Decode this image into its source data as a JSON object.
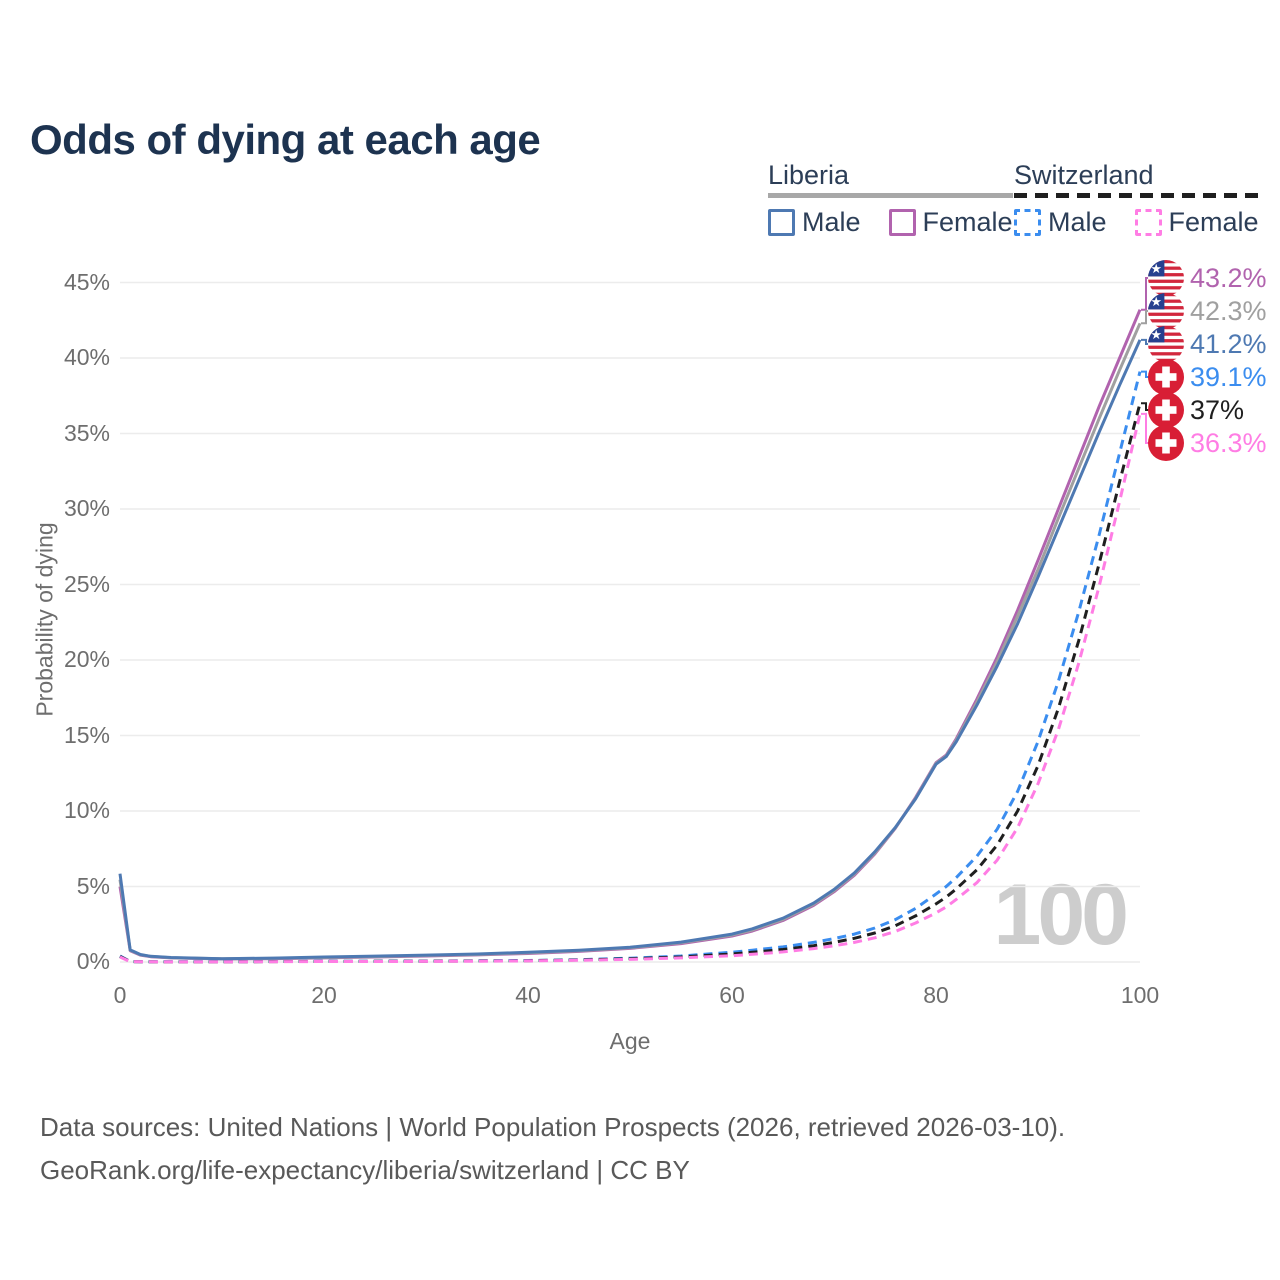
{
  "title": "Odds of dying at each age",
  "legend": {
    "groups": [
      {
        "name": "Liberia",
        "line_style": "solid",
        "underline_color": "#a8a8a8",
        "items": [
          {
            "label": "Male",
            "color": "#4e79b2"
          },
          {
            "label": "Female",
            "color": "#b163ae"
          }
        ]
      },
      {
        "name": "Switzerland",
        "line_style": "dashed",
        "underline_color": "#1f1f1f",
        "items": [
          {
            "label": "Male",
            "color": "#3b8def"
          },
          {
            "label": "Female",
            "color": "#ff7de4"
          }
        ]
      }
    ]
  },
  "chart_data": {
    "type": "line",
    "title": "Odds of dying at each age",
    "xlabel": "Age",
    "ylabel": "Probability of dying",
    "xlim": [
      0,
      100
    ],
    "ylim": [
      0,
      45
    ],
    "x_ticks": [
      "0",
      "20",
      "40",
      "60",
      "80",
      "100"
    ],
    "y_ticks": [
      "45%",
      "40%",
      "35%",
      "30%",
      "25%",
      "20%",
      "15%",
      "10%",
      "5%",
      "0%"
    ],
    "grid": "horizontal",
    "watermark": "100",
    "legend_position": "top-right",
    "ages": [
      0,
      1,
      2,
      3,
      5,
      10,
      15,
      20,
      25,
      30,
      35,
      40,
      45,
      50,
      55,
      60,
      62,
      65,
      68,
      70,
      72,
      74,
      76,
      78,
      80,
      81,
      82,
      84,
      86,
      88,
      90,
      92,
      94,
      96,
      98,
      100
    ],
    "series": [
      {
        "id": "liberia-female",
        "name": "Liberia Female",
        "country": "Liberia",
        "sex": "Female",
        "color": "#b163ae",
        "dashed": false,
        "end_label": "43.2%",
        "flag": "liberia",
        "values_pct": [
          5.0,
          0.75,
          0.46,
          0.35,
          0.27,
          0.2,
          0.22,
          0.27,
          0.33,
          0.4,
          0.47,
          0.56,
          0.7,
          0.9,
          1.22,
          1.72,
          2.05,
          2.75,
          3.75,
          4.65,
          5.75,
          7.15,
          8.85,
          10.9,
          13.2,
          13.7,
          14.8,
          17.4,
          20.2,
          23.3,
          26.6,
          30.0,
          33.4,
          36.8,
          40.0,
          43.2
        ]
      },
      {
        "id": "liberia-total",
        "name": "Liberia (both sexes)",
        "country": "Liberia",
        "sex": "Both",
        "color": "#a0a0a0",
        "dashed": false,
        "end_label": "42.3%",
        "flag": "liberia",
        "values_pct": [
          5.45,
          0.78,
          0.48,
          0.37,
          0.28,
          0.21,
          0.24,
          0.3,
          0.36,
          0.43,
          0.5,
          0.6,
          0.74,
          0.94,
          1.27,
          1.78,
          2.12,
          2.82,
          3.82,
          4.72,
          5.82,
          7.22,
          8.87,
          10.85,
          13.15,
          13.65,
          14.7,
          17.2,
          19.9,
          22.9,
          26.0,
          29.4,
          32.7,
          36.0,
          39.2,
          42.3
        ]
      },
      {
        "id": "liberia-male",
        "name": "Liberia Male",
        "country": "Liberia",
        "sex": "Male",
        "color": "#4e79b2",
        "dashed": false,
        "end_label": "41.2%",
        "flag": "liberia",
        "values_pct": [
          5.85,
          0.8,
          0.5,
          0.38,
          0.3,
          0.22,
          0.26,
          0.33,
          0.39,
          0.46,
          0.53,
          0.64,
          0.78,
          0.98,
          1.32,
          1.85,
          2.2,
          2.9,
          3.9,
          4.8,
          5.9,
          7.3,
          8.9,
          10.8,
          13.1,
          13.6,
          14.6,
          17.0,
          19.6,
          22.4,
          25.5,
          28.7,
          31.9,
          35.1,
          38.2,
          41.2
        ]
      },
      {
        "id": "switzerland-male",
        "name": "Switzerland Male",
        "country": "Switzerland",
        "sex": "Male",
        "color": "#3b8def",
        "dashed": true,
        "end_label": "39.1%",
        "flag": "switzerland",
        "values_pct": [
          0.4,
          0.03,
          0.02,
          0.015,
          0.01,
          0.01,
          0.03,
          0.05,
          0.055,
          0.06,
          0.08,
          0.1,
          0.15,
          0.25,
          0.4,
          0.65,
          0.78,
          1.0,
          1.3,
          1.55,
          1.85,
          2.25,
          2.8,
          3.55,
          4.5,
          5.0,
          5.6,
          7.0,
          8.8,
          11.3,
          14.6,
          18.6,
          23.2,
          28.3,
          33.7,
          39.1
        ]
      },
      {
        "id": "switzerland-total",
        "name": "Switzerland (both sexes)",
        "country": "Switzerland",
        "sex": "Both",
        "color": "#1f1f1f",
        "dashed": true,
        "end_label": "37%",
        "flag": "switzerland",
        "values_pct": [
          0.37,
          0.028,
          0.018,
          0.014,
          0.009,
          0.009,
          0.025,
          0.04,
          0.045,
          0.05,
          0.065,
          0.085,
          0.13,
          0.21,
          0.33,
          0.53,
          0.64,
          0.83,
          1.08,
          1.3,
          1.57,
          1.92,
          2.4,
          3.05,
          3.85,
          4.3,
          4.85,
          6.1,
          7.75,
          10.0,
          13.0,
          16.8,
          21.3,
          26.4,
          31.8,
          37.0
        ]
      },
      {
        "id": "switzerland-female",
        "name": "Switzerland Female",
        "country": "Switzerland",
        "sex": "Female",
        "color": "#ff7de4",
        "dashed": true,
        "end_label": "36.3%",
        "flag": "switzerland",
        "values_pct": [
          0.33,
          0.025,
          0.016,
          0.012,
          0.008,
          0.008,
          0.02,
          0.03,
          0.035,
          0.04,
          0.055,
          0.07,
          0.11,
          0.17,
          0.27,
          0.42,
          0.51,
          0.67,
          0.89,
          1.07,
          1.3,
          1.6,
          2.02,
          2.58,
          3.25,
          3.65,
          4.15,
          5.25,
          6.75,
          8.9,
          11.8,
          15.4,
          19.8,
          24.9,
          30.5,
          36.3
        ]
      }
    ]
  },
  "footer": {
    "line1": "Data sources: United Nations | World Population Prospects (2026, retrieved 2026-03-10).",
    "line2": "GeoRank.org/life-expectancy/liberia/switzerland | CC BY"
  }
}
